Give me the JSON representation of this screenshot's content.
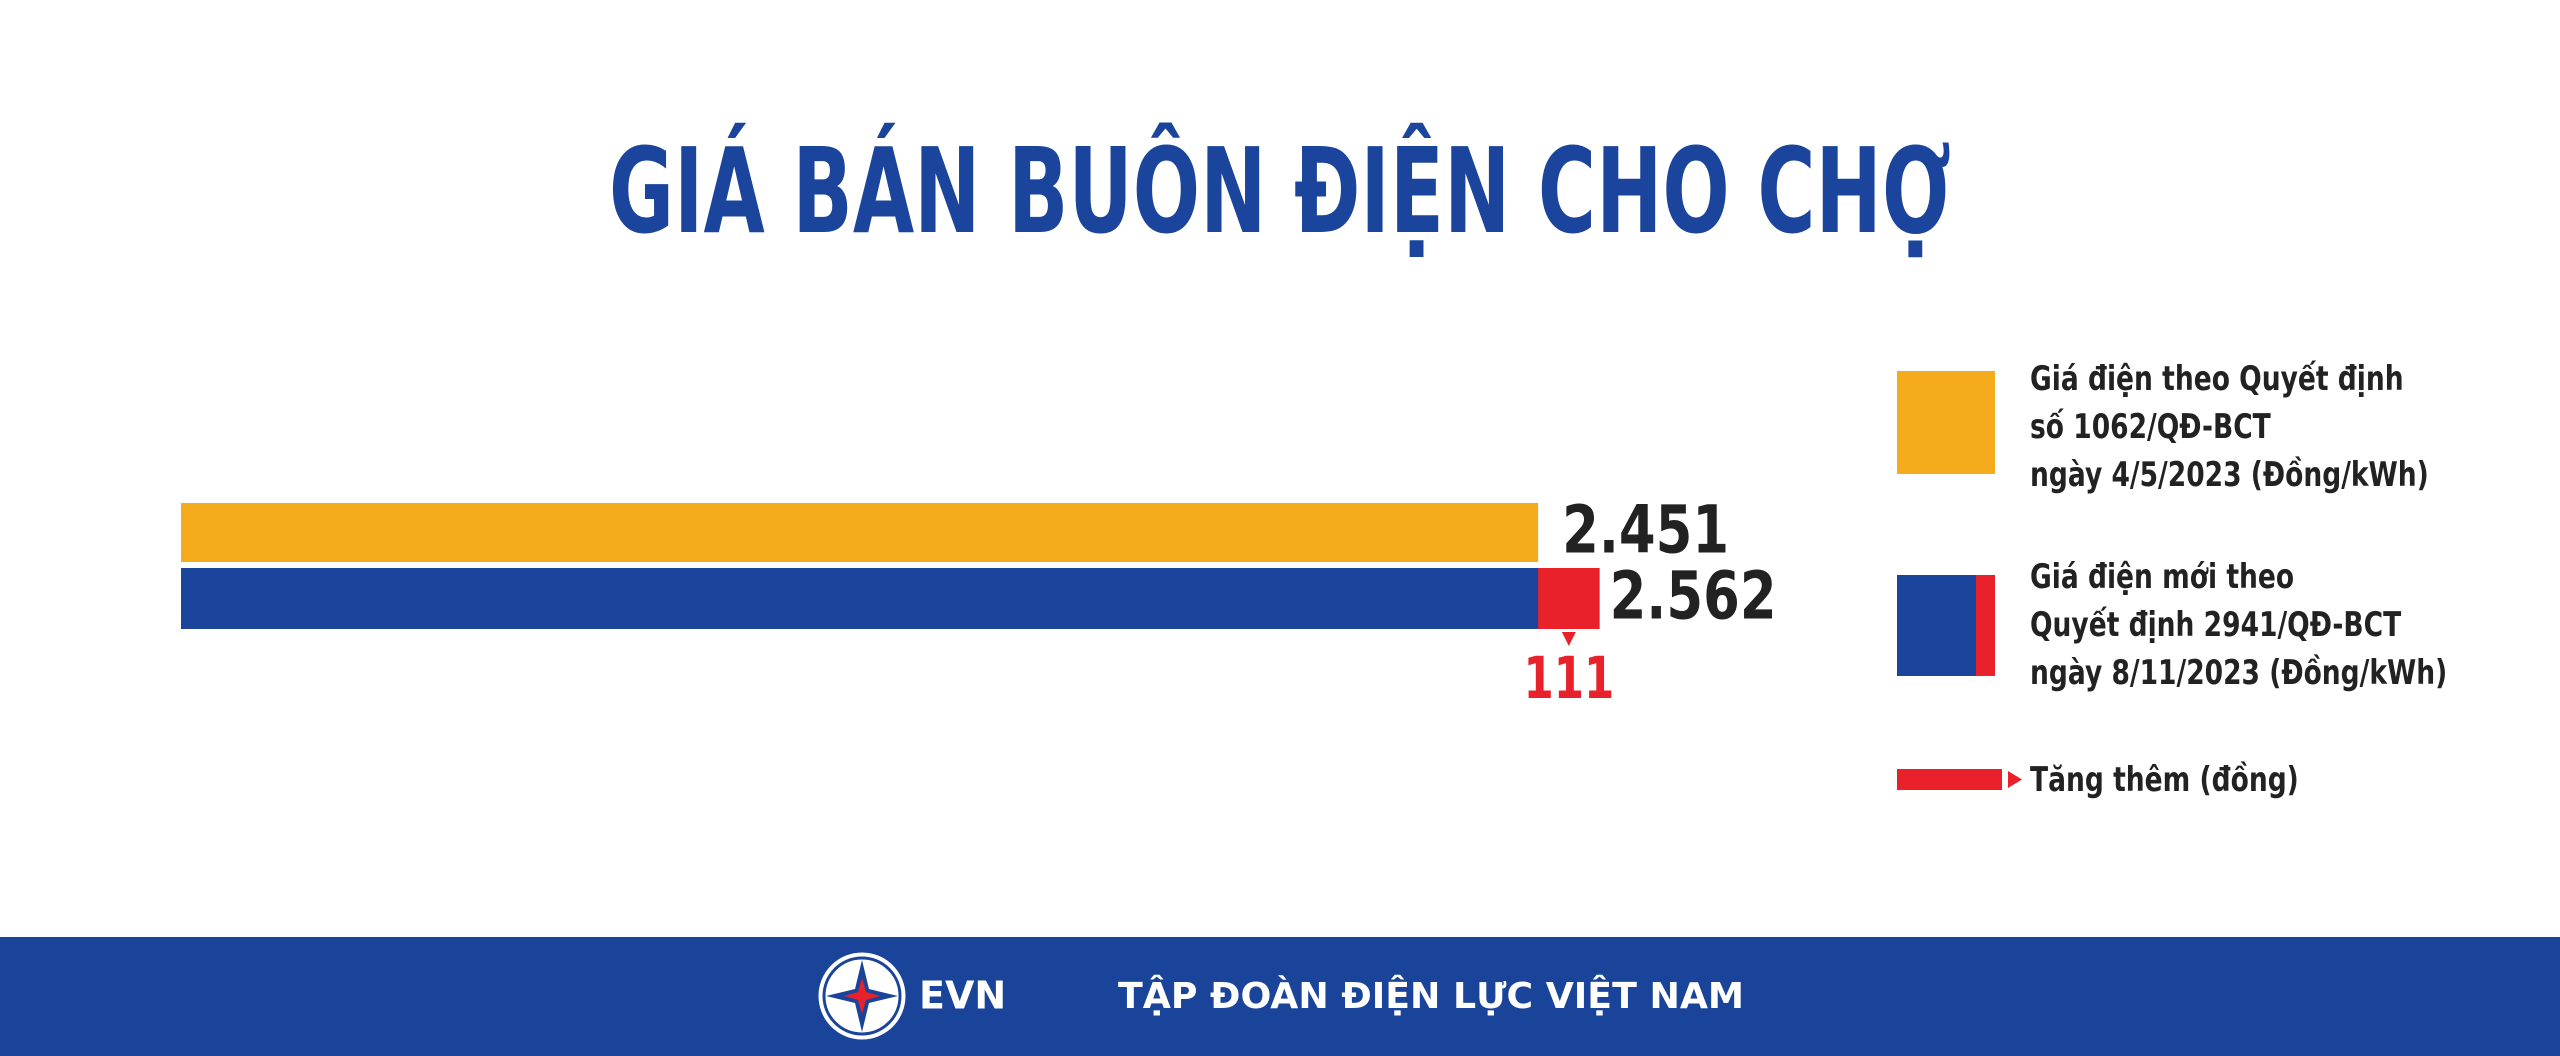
{
  "chart_data": {
    "type": "bar",
    "title": "GIÁ BÁN BUÔN ĐIỆN CHO CHỢ",
    "series": [
      {
        "name": "Giá điện theo Quyết định\nsố 1062/QĐ-BCT\nngày 4/5/2023 (Đồng/kWh)",
        "color": "#f4ab1c",
        "values": [
          2451
        ],
        "value_labels": [
          "2.451"
        ]
      },
      {
        "name": "Giá điện mới theo\nQuyết định 2941/QĐ-BCT\nngày 8/11/2023 (Đồng/kWh)",
        "color": "#1b449c",
        "values": [
          2562
        ],
        "value_labels": [
          "2.562"
        ]
      },
      {
        "name": "Tăng thêm (đồng)",
        "color": "#e8212b",
        "values": [
          111
        ]
      }
    ]
  },
  "footer": {
    "logo_text": "EVN",
    "organization": "TẬP ĐOÀN ĐIỆN LỰC VIỆT NAM"
  }
}
